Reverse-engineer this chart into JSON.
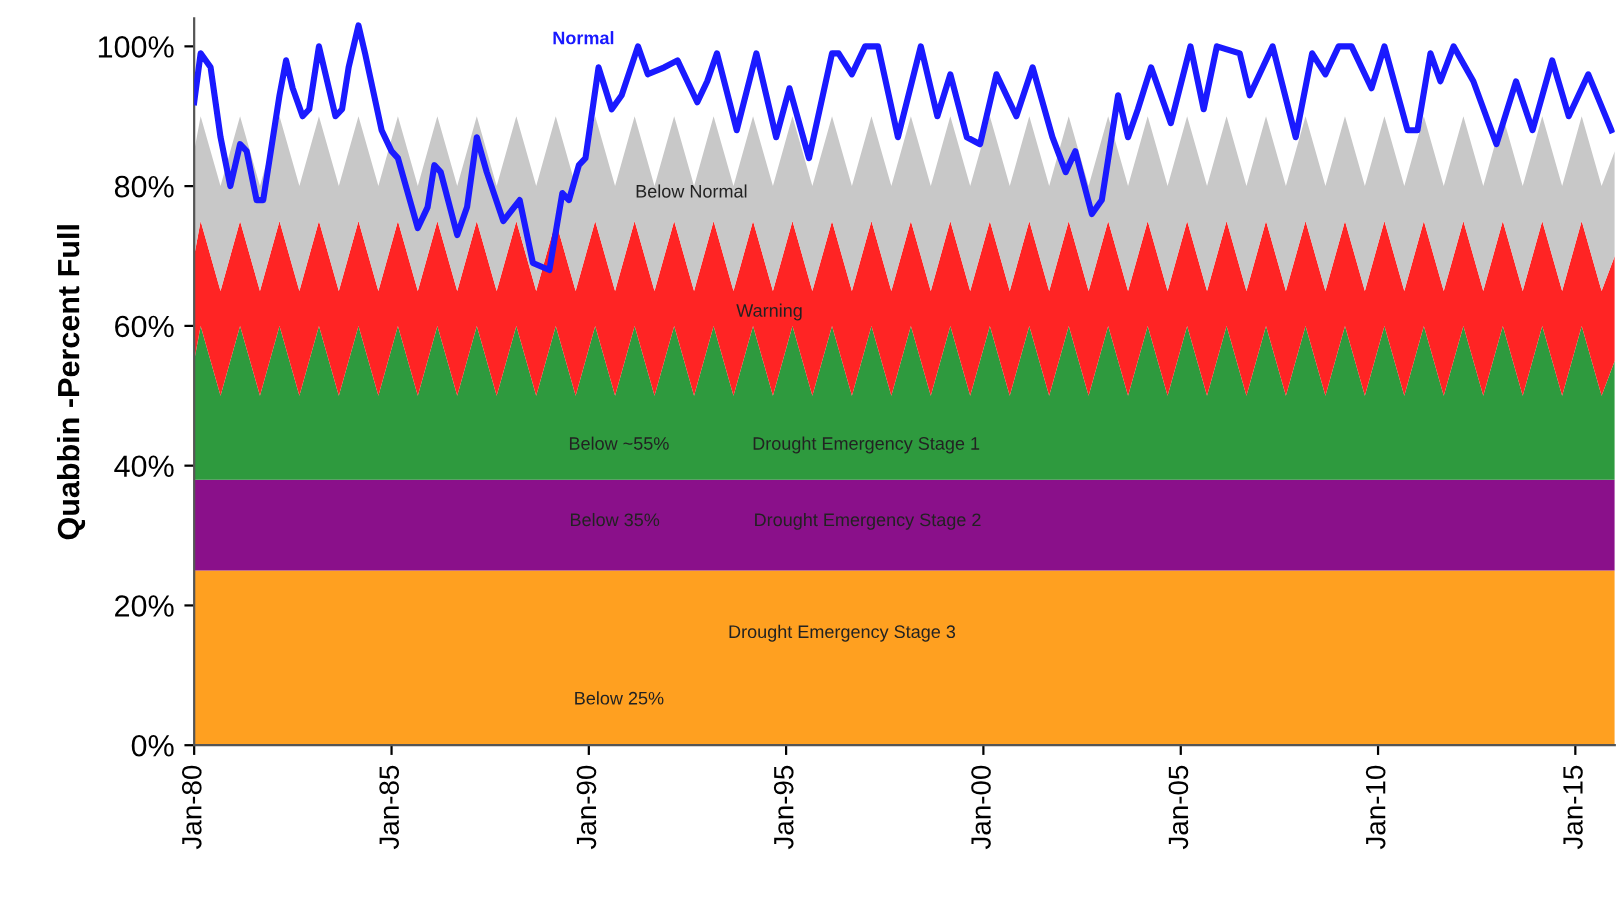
{
  "chart_data": {
    "type": "area",
    "stacked": true,
    "ylabel": "Quabbin -Percent Full",
    "x": [
      "1980-01",
      "1980-03",
      "1980-09",
      "1981-03",
      "1981-09",
      "1982-03",
      "1982-09",
      "1983-03",
      "1983-09",
      "1984-03",
      "1984-09",
      "1985-03",
      "1985-09",
      "1986-03",
      "1986-09",
      "1987-03",
      "1987-09",
      "1988-03",
      "1988-09",
      "1989-03",
      "1989-09",
      "1990-03",
      "1990-09",
      "1991-03",
      "1991-09",
      "1992-03",
      "1992-09",
      "1993-03",
      "1993-09",
      "1994-03",
      "1994-09",
      "1995-03",
      "1995-09",
      "1996-03",
      "1996-09",
      "1997-03",
      "1997-09",
      "1998-03",
      "1998-09",
      "1999-03",
      "1999-09",
      "2000-03",
      "2000-09",
      "2001-03",
      "2001-09",
      "2002-03",
      "2002-09",
      "2003-03",
      "2003-09",
      "2004-03",
      "2004-09",
      "2005-03",
      "2005-09",
      "2006-03",
      "2006-09",
      "2007-03",
      "2007-09",
      "2008-03",
      "2008-09",
      "2009-03",
      "2009-09",
      "2010-03",
      "2010-09",
      "2011-03",
      "2011-09",
      "2012-03",
      "2012-09",
      "2013-03",
      "2013-09",
      "2014-03",
      "2014-09",
      "2015-03",
      "2015-09",
      "2016-01"
    ],
    "series": [
      {
        "name": "Drought Emergency Stage 3",
        "color": "#ffa020",
        "values": [
          25,
          25,
          25,
          25,
          25,
          25,
          25,
          25,
          25,
          25,
          25,
          25,
          25,
          25,
          25,
          25,
          25,
          25,
          25,
          25,
          25,
          25,
          25,
          25,
          25,
          25,
          25,
          25,
          25,
          25,
          25,
          25,
          25,
          25,
          25,
          25,
          25,
          25,
          25,
          25,
          25,
          25,
          25,
          25,
          25,
          25,
          25,
          25,
          25,
          25,
          25,
          25,
          25,
          25,
          25,
          25,
          25,
          25,
          25,
          25,
          25,
          25,
          25,
          25,
          25,
          25,
          25,
          25,
          25,
          25,
          25,
          25,
          25,
          25
        ]
      },
      {
        "name": "Drought Emergency Stage 2",
        "color": "#8a108a",
        "values": [
          13,
          13,
          13,
          13,
          13,
          13,
          13,
          13,
          13,
          13,
          13,
          13,
          13,
          13,
          13,
          13,
          13,
          13,
          13,
          13,
          13,
          13,
          13,
          13,
          13,
          13,
          13,
          13,
          13,
          13,
          13,
          13,
          13,
          13,
          13,
          13,
          13,
          13,
          13,
          13,
          13,
          13,
          13,
          13,
          13,
          13,
          13,
          13,
          13,
          13,
          13,
          13,
          13,
          13,
          13,
          13,
          13,
          13,
          13,
          13,
          13,
          13,
          13,
          13,
          13,
          13,
          13,
          13,
          13,
          13,
          13,
          13,
          13,
          13
        ]
      },
      {
        "name": "Drought Emergency Stage 1",
        "color": "#2e9a3e",
        "values": [
          17,
          22,
          12,
          22,
          12,
          22,
          12,
          22,
          12,
          22,
          12,
          22,
          12,
          22,
          12,
          22,
          12,
          22,
          12,
          22,
          12,
          22,
          12,
          22,
          12,
          22,
          12,
          22,
          12,
          22,
          12,
          22,
          12,
          22,
          12,
          22,
          12,
          22,
          12,
          22,
          12,
          22,
          12,
          22,
          12,
          22,
          12,
          22,
          12,
          22,
          12,
          22,
          12,
          22,
          12,
          22,
          12,
          22,
          12,
          22,
          12,
          22,
          12,
          22,
          12,
          22,
          12,
          22,
          12,
          22,
          12,
          22,
          12,
          17
        ]
      },
      {
        "name": "Warning",
        "color": "#ff2424",
        "values": [
          15,
          15,
          15,
          15,
          15,
          15,
          15,
          15,
          15,
          15,
          15,
          15,
          15,
          15,
          15,
          15,
          15,
          15,
          15,
          15,
          15,
          15,
          15,
          15,
          15,
          15,
          15,
          15,
          15,
          15,
          15,
          15,
          15,
          15,
          15,
          15,
          15,
          15,
          15,
          15,
          15,
          15,
          15,
          15,
          15,
          15,
          15,
          15,
          15,
          15,
          15,
          15,
          15,
          15,
          15,
          15,
          15,
          15,
          15,
          15,
          15,
          15,
          15,
          15,
          15,
          15,
          15,
          15,
          15,
          15,
          15,
          15,
          15,
          15
        ]
      },
      {
        "name": "Below Normal",
        "color": "#c8c8c8",
        "values": [
          15,
          15,
          15,
          15,
          15,
          15,
          15,
          15,
          15,
          15,
          15,
          15,
          15,
          15,
          15,
          15,
          15,
          15,
          15,
          15,
          15,
          15,
          15,
          15,
          15,
          15,
          15,
          15,
          15,
          15,
          15,
          15,
          15,
          15,
          15,
          15,
          15,
          15,
          15,
          15,
          15,
          15,
          15,
          15,
          15,
          15,
          15,
          15,
          15,
          15,
          15,
          15,
          15,
          15,
          15,
          15,
          15,
          15,
          15,
          15,
          15,
          15,
          15,
          15,
          15,
          15,
          15,
          15,
          15,
          15,
          15,
          15,
          15,
          15
        ]
      },
      {
        "type": "line",
        "name": "Normal",
        "color": "#1a1aff",
        "x": [
          "1980-01",
          "1980-03",
          "1980-06",
          "1980-09",
          "1980-12",
          "1981-03",
          "1981-05",
          "1981-08",
          "1981-10",
          "1982-03",
          "1982-05",
          "1982-07",
          "1982-10",
          "1982-12",
          "1983-03",
          "1983-05",
          "1983-08",
          "1983-10",
          "1983-12",
          "1984-03",
          "1984-05",
          "1984-10",
          "1985-01",
          "1985-03",
          "1985-09",
          "1985-12",
          "1986-02",
          "1986-04",
          "1986-09",
          "1986-12",
          "1987-03",
          "1987-06",
          "1987-11",
          "1988-04",
          "1988-08",
          "1989-01",
          "1989-05",
          "1989-07",
          "1989-10",
          "1989-12",
          "1990-04",
          "1990-08",
          "1990-11",
          "1991-04",
          "1991-07",
          "1991-12",
          "1992-04",
          "1992-10",
          "1993-01",
          "1993-04",
          "1993-10",
          "1994-04",
          "1994-10",
          "1995-02",
          "1995-08",
          "1996-03",
          "1996-05",
          "1996-09",
          "1997-01",
          "1997-05",
          "1997-11",
          "1998-06",
          "1998-11",
          "1999-03",
          "1999-08",
          "1999-12",
          "2000-05",
          "2000-11",
          "2001-04",
          "2001-10",
          "2002-02",
          "2002-05",
          "2002-10",
          "2003-01",
          "2003-06",
          "2003-09",
          "2003-12",
          "2004-04",
          "2004-10",
          "2005-04",
          "2005-08",
          "2005-12",
          "2006-07",
          "2006-10",
          "2007-05",
          "2007-12",
          "2008-05",
          "2008-09",
          "2009-01",
          "2009-05",
          "2009-11",
          "2010-03",
          "2010-10",
          "2011-01",
          "2011-05",
          "2011-08",
          "2011-12",
          "2012-06",
          "2013-01",
          "2013-07",
          "2013-12",
          "2014-06",
          "2014-11",
          "2015-05",
          "2015-12"
        ],
        "values": [
          92,
          99,
          97,
          87,
          80,
          86,
          85,
          78,
          78,
          93,
          98,
          94,
          90,
          91,
          100,
          96,
          90,
          91,
          97,
          103,
          99,
          88,
          85,
          84,
          74,
          77,
          83,
          82,
          73,
          77,
          87,
          82,
          75,
          78,
          69,
          68,
          79,
          78,
          83,
          84,
          97,
          91,
          93,
          100,
          96,
          97,
          98,
          92,
          95,
          99,
          88,
          99,
          87,
          94,
          84,
          99,
          99,
          96,
          100,
          100,
          87,
          100,
          90,
          96,
          87,
          86,
          96,
          90,
          97,
          87,
          82,
          85,
          76,
          78,
          93,
          87,
          91,
          97,
          89,
          100,
          91,
          100,
          99,
          93,
          100,
          87,
          99,
          96,
          100,
          100,
          94,
          100,
          88,
          88,
          99,
          95,
          100,
          95,
          86,
          95,
          88,
          98,
          90,
          96,
          88
        ]
      }
    ],
    "annotations": [
      "Below ~55%",
      "Below 35%",
      "Below 25%"
    ],
    "xlim": [
      "1980-01",
      "2016-01"
    ],
    "xticks": [
      {
        "value": "1980-01",
        "label": "Jan-80"
      },
      {
        "value": "1985-01",
        "label": "Jan-85"
      },
      {
        "value": "1990-01",
        "label": "Jan-90"
      },
      {
        "value": "1995-01",
        "label": "Jan-95"
      },
      {
        "value": "2000-01",
        "label": "Jan-00"
      },
      {
        "value": "2005-01",
        "label": "Jan-05"
      },
      {
        "value": "2010-01",
        "label": "Jan-10"
      },
      {
        "value": "2015-01",
        "label": "Jan-15"
      }
    ],
    "ylim": [
      0,
      104
    ],
    "yticks": [
      {
        "value": 0,
        "label": "0%"
      },
      {
        "value": 20,
        "label": "20%"
      },
      {
        "value": 40,
        "label": "40%"
      },
      {
        "value": 60,
        "label": "60%"
      },
      {
        "value": 80,
        "label": "80%"
      },
      {
        "value": 100,
        "label": "100%"
      }
    ],
    "grid": false,
    "legend": false
  }
}
